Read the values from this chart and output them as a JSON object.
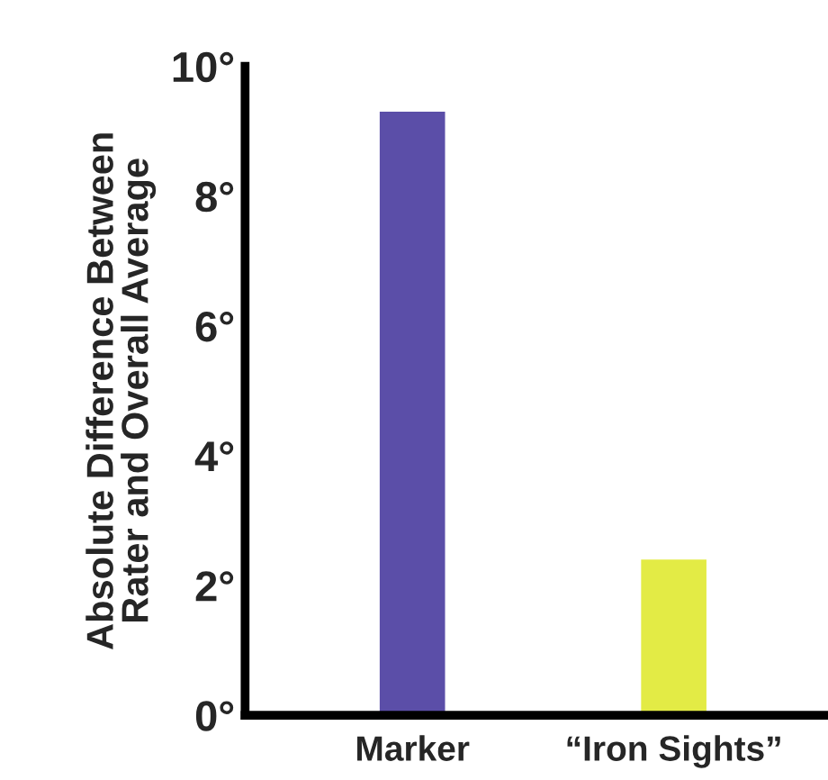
{
  "chart_data": {
    "type": "bar",
    "ylabel": "Absolute Difference Between\nRater and Overall Average",
    "categories": [
      "Marker",
      "“Iron Sights”"
    ],
    "values": [
      9.3,
      2.4
    ],
    "colors": [
      "#5b4ea8",
      "#e3eb45"
    ],
    "ylim": [
      0,
      10
    ],
    "yticks": [
      {
        "value": 0,
        "label": "0°"
      },
      {
        "value": 2,
        "label": "2°"
      },
      {
        "value": 4,
        "label": "4°"
      },
      {
        "value": 6,
        "label": "6°"
      },
      {
        "value": 8,
        "label": "8°"
      },
      {
        "value": 10,
        "label": "10°"
      }
    ],
    "grid": false,
    "legend": false
  }
}
